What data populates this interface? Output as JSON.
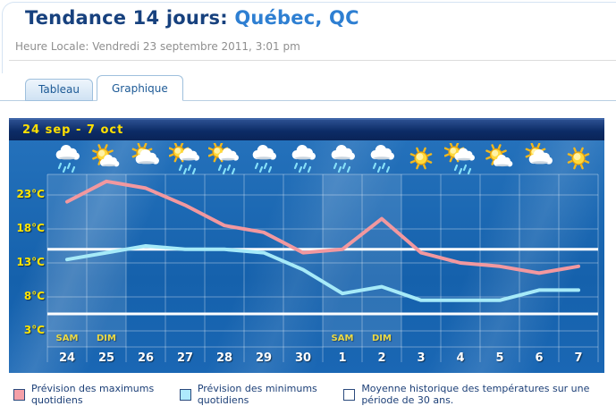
{
  "page": {
    "title_prefix": "Tendance 14 jours:",
    "title_location": " Québec, QC",
    "subtitle": "Heure Locale: Vendredi 23 septembre 2011, 3:01 pm"
  },
  "tabs": [
    {
      "label": "Tableau",
      "active": false
    },
    {
      "label": "Graphique",
      "active": true
    }
  ],
  "chart_data": {
    "type": "line",
    "title": "24 sep  -  7 oct",
    "x_labels": [
      "24",
      "25",
      "26",
      "27",
      "28",
      "29",
      "30",
      "1",
      "2",
      "3",
      "4",
      "5",
      "6",
      "7"
    ],
    "weekday_labels": [
      {
        "index": 0,
        "label": "SAM"
      },
      {
        "index": 1,
        "label": "DIM"
      },
      {
        "index": 7,
        "label": "SAM"
      },
      {
        "index": 8,
        "label": "DIM"
      }
    ],
    "weekend_columns": [
      0,
      1,
      7,
      8
    ],
    "y_ticks": [
      "23°C",
      "18°C",
      "13°C",
      "8°C",
      "3°C"
    ],
    "y_tick_values": [
      23,
      18,
      13,
      8,
      3
    ],
    "ylim": [
      1,
      27
    ],
    "grid": true,
    "series": [
      {
        "name": "Prévision des maximums quotidiens",
        "color": "#f2989f",
        "values": [
          22,
          25,
          24,
          21.5,
          18.5,
          17.5,
          14.5,
          15,
          19.5,
          14.5,
          13,
          12.5,
          11.5,
          12.5
        ]
      },
      {
        "name": "Prévision des minimums quotidiens",
        "color": "#a6eaf8",
        "values": [
          13.5,
          14.5,
          15.5,
          15,
          15,
          14.5,
          12,
          8.5,
          9.5,
          7.5,
          7.5,
          7.5,
          9,
          9
        ]
      }
    ],
    "historical_lines": {
      "color": "#ffffff",
      "values": [
        15,
        5.5
      ]
    },
    "icons": [
      "rain",
      "partly-cloudy",
      "mostly-cloudy",
      "sun-rain",
      "sun-rain",
      "rain",
      "rain",
      "rain",
      "rain",
      "sunny",
      "sun-rain",
      "partly-cloudy",
      "mostly-cloudy",
      "sunny"
    ]
  },
  "legend": [
    {
      "swatch": "#f5a0a8",
      "label": "Prévision des maximums quotidiens"
    },
    {
      "swatch": "#aeeafc",
      "label": "Prévision des minimums quotidiens"
    },
    {
      "swatch": "#ffffff",
      "label": "Moyenne historique des températures sur une période de 30 ans."
    }
  ]
}
